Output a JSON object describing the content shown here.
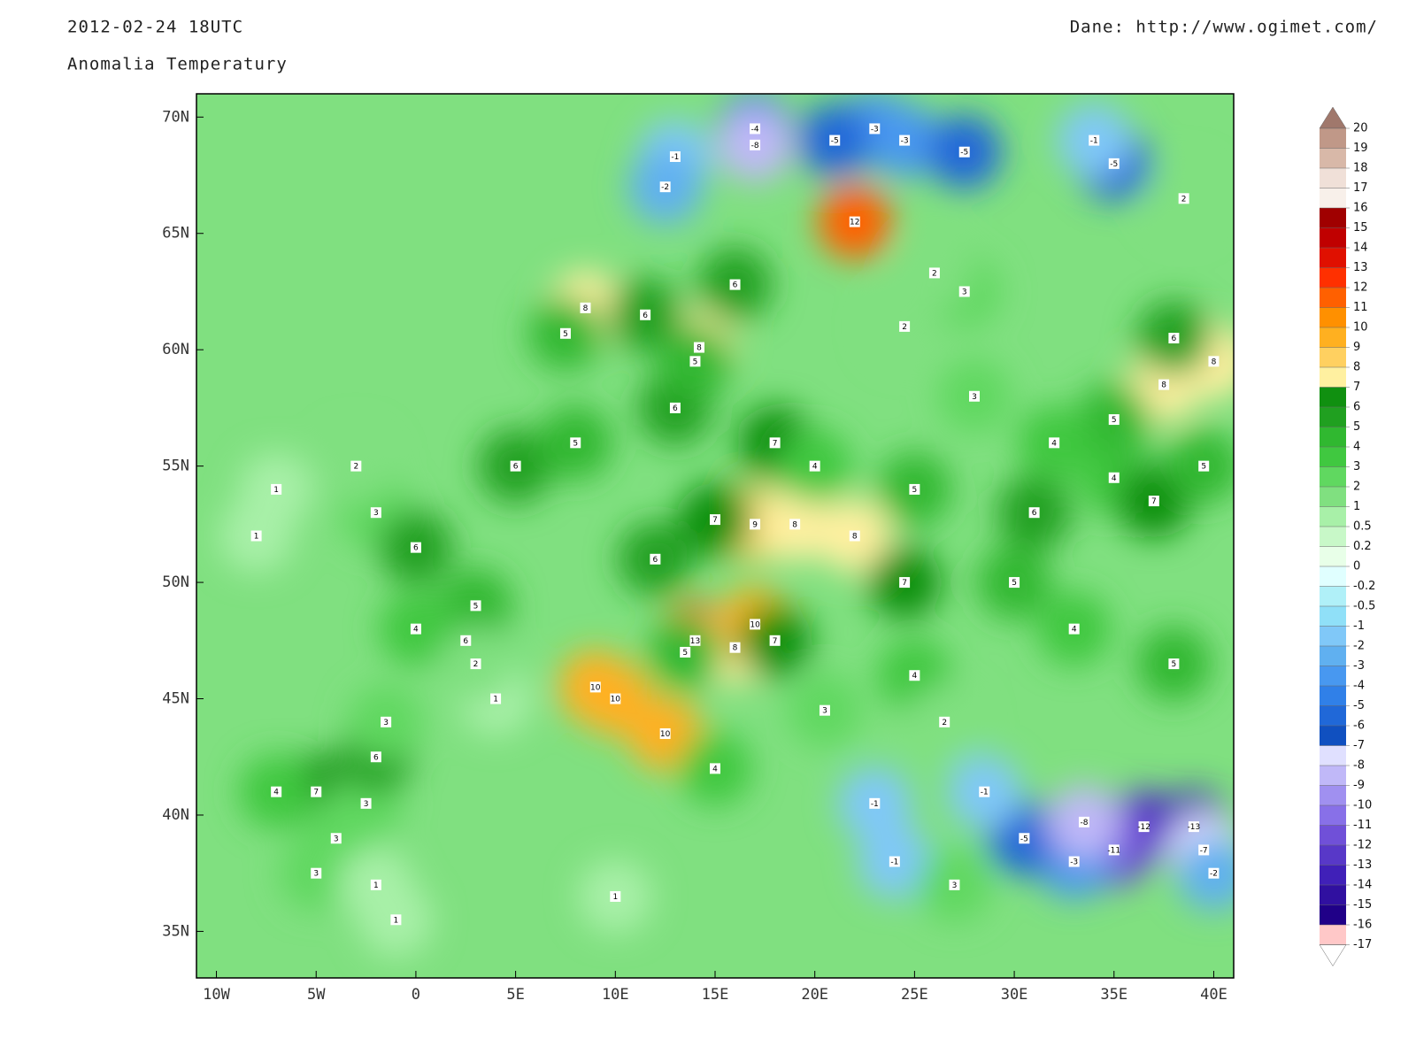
{
  "header": {
    "date": "2012-02-24 18UTC",
    "subtitle": "Anomalia Temperatury",
    "source": "Dane: http://www.ogimet.com/"
  },
  "map": {
    "type": "map",
    "xlim": [
      -11,
      41
    ],
    "ylim": [
      33,
      71
    ],
    "xticks": [
      {
        "value": -10,
        "label": "10W"
      },
      {
        "value": -5,
        "label": "5W"
      },
      0,
      {
        "value": 5,
        "label": "5E"
      },
      {
        "value": 10,
        "label": "10E"
      },
      {
        "value": 15,
        "label": "15E"
      },
      {
        "value": 20,
        "label": "20E"
      },
      {
        "value": 25,
        "label": "25E"
      },
      {
        "value": 30,
        "label": "30E"
      },
      {
        "value": 35,
        "label": "35E"
      },
      {
        "value": 40,
        "label": "40E"
      }
    ],
    "yticks": [
      {
        "value": 35,
        "label": "35N"
      },
      {
        "value": 40,
        "label": "40N"
      },
      {
        "value": 45,
        "label": "45N"
      },
      {
        "value": 50,
        "label": "50N"
      },
      {
        "value": 55,
        "label": "55N"
      },
      {
        "value": 60,
        "label": "60N"
      },
      {
        "value": 65,
        "label": "65N"
      },
      {
        "value": 70,
        "label": "70N"
      }
    ],
    "stations": {
      "lon": [
        8.5,
        14.2,
        11.5,
        16,
        7.5,
        13,
        18,
        14,
        24.5,
        27.5,
        26,
        22,
        23,
        21,
        24.5,
        27.5,
        17,
        17,
        13,
        12.5,
        35,
        34,
        38.5,
        17,
        19,
        22,
        15,
        12,
        24.5,
        14,
        16,
        17,
        18,
        12.5,
        9,
        10,
        13.5,
        15,
        -5,
        -2.5,
        -4,
        -2,
        -7,
        -5,
        -2,
        2.5,
        3,
        0,
        -1.5,
        4,
        -2,
        0,
        -3,
        -7,
        36.5,
        39,
        35,
        39.5,
        33,
        30.5,
        33.5,
        40,
        31,
        35,
        37,
        39.5,
        37.5,
        40,
        38,
        35,
        30,
        33,
        38,
        20.5,
        25,
        26.5,
        23,
        24,
        28.5,
        27,
        10,
        -1,
        5,
        8,
        20,
        28,
        25,
        32,
        3,
        -8
      ],
      "lat": [
        61.8,
        60.1,
        61.5,
        62.8,
        60.7,
        57.5,
        56,
        59.5,
        61,
        62.5,
        63.3,
        65.5,
        69.5,
        69,
        69,
        68.5,
        69.5,
        68.8,
        68.3,
        67,
        68,
        69,
        66.5,
        52.5,
        52.5,
        52,
        52.7,
        51,
        50,
        47.5,
        47.2,
        48.2,
        47.5,
        43.5,
        45.5,
        45,
        47,
        42,
        41,
        40.5,
        39,
        42.5,
        41,
        37.5,
        37,
        47.5,
        49,
        48,
        44,
        45,
        53,
        51.5,
        55,
        54,
        39.5,
        39.5,
        38.5,
        38.5,
        38,
        39,
        39.7,
        37.5,
        53,
        54.5,
        53.5,
        55,
        58.5,
        59.5,
        60.5,
        57,
        50,
        48,
        46.5,
        44.5,
        46,
        44,
        40.5,
        38,
        41,
        37,
        36.5,
        35.5,
        55,
        56,
        55,
        58,
        54,
        56,
        46.5,
        52
      ],
      "values": [
        8,
        8,
        6,
        6,
        5,
        6,
        7,
        5,
        2,
        3,
        2,
        12,
        -3,
        -5,
        -3,
        -5,
        -4,
        -8,
        -1,
        -2,
        -5,
        -1,
        2,
        9,
        8,
        8,
        7,
        6,
        7,
        13,
        8,
        10,
        7,
        10,
        10,
        10,
        5,
        4,
        7,
        3,
        3,
        6,
        4,
        3,
        1,
        6,
        5,
        4,
        3,
        1,
        3,
        6,
        2,
        1,
        -12,
        -13,
        -11,
        -7,
        -3,
        -5,
        -8,
        -2,
        6,
        4,
        7,
        5,
        8,
        8,
        6,
        5,
        5,
        4,
        5,
        3,
        4,
        2,
        -1,
        -1,
        -1,
        3,
        1,
        1,
        6,
        5,
        4,
        3,
        5,
        4,
        2,
        1
      ]
    },
    "colorbar": {
      "levels": [
        20,
        19,
        18,
        17,
        16,
        15,
        14,
        13,
        12,
        11,
        10,
        9,
        8,
        7,
        6,
        5,
        4,
        3,
        2,
        1,
        0.5,
        0.2,
        0,
        -0.2,
        -0.5,
        -1,
        -2,
        -3,
        -4,
        -5,
        -6,
        -7,
        -8,
        -9,
        -10,
        -11,
        -12,
        -13,
        -14,
        -15,
        -16,
        -17
      ],
      "colors": [
        "#a0786c",
        "#c09888",
        "#d8b8a8",
        "#f0e0d8",
        "#f8f0ea",
        "#a00000",
        "#c00000",
        "#e01000",
        "#ff3000",
        "#ff6000",
        "#ff9000",
        "#ffb020",
        "#ffd060",
        "#fff0a0",
        "#109010",
        "#20a020",
        "#30b830",
        "#40c840",
        "#60d860",
        "#80e080",
        "#a8f0a8",
        "#c8f8c8",
        "#e8ffe8",
        "#e0ffff",
        "#b0f0f8",
        "#90e0f8",
        "#80c8f8",
        "#60b0f0",
        "#4898f0",
        "#3080e8",
        "#2068d8",
        "#1050c0",
        "#e0e0ff",
        "#c0b8f8",
        "#a090f0",
        "#8870e8",
        "#7050d8",
        "#5838c8",
        "#4020b8",
        "#3010a0",
        "#200088",
        "#ffc8c8",
        "#ffffff"
      ]
    }
  }
}
